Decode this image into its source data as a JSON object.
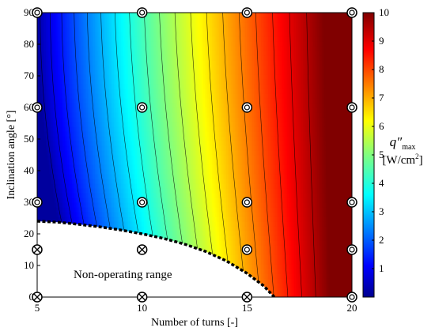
{
  "chart_data": {
    "type": "heatmap",
    "xlabel": "Number of turns [-]",
    "ylabel": "Inclination angle [°]",
    "xlim": [
      5,
      20
    ],
    "ylim": [
      0,
      90
    ],
    "x_ticks": [
      5,
      10,
      15,
      20
    ],
    "y_ticks": [
      0,
      10,
      20,
      30,
      40,
      50,
      60,
      70,
      80,
      90
    ],
    "colorbar": {
      "label_symbol": "q″",
      "label_sub": "max",
      "label_unit": "[W/cm",
      "label_unit_sup": "2",
      "label_unit_end": "]",
      "range": [
        0,
        10
      ],
      "ticks": [
        1,
        2,
        3,
        4,
        5,
        6,
        7,
        8,
        9,
        10
      ],
      "colormap": "jet"
    },
    "annotation": "Non-operating range",
    "operating_points": [
      {
        "x": 5,
        "y": 90
      },
      {
        "x": 10,
        "y": 90
      },
      {
        "x": 15,
        "y": 90
      },
      {
        "x": 20,
        "y": 90
      },
      {
        "x": 5,
        "y": 60
      },
      {
        "x": 10,
        "y": 60
      },
      {
        "x": 15,
        "y": 60
      },
      {
        "x": 20,
        "y": 60
      },
      {
        "x": 5,
        "y": 30
      },
      {
        "x": 10,
        "y": 30
      },
      {
        "x": 15,
        "y": 30
      },
      {
        "x": 20,
        "y": 30
      },
      {
        "x": 15,
        "y": 15
      },
      {
        "x": 20,
        "y": 15
      },
      {
        "x": 20,
        "y": 0
      }
    ],
    "non_operating_points": [
      {
        "x": 5,
        "y": 15
      },
      {
        "x": 10,
        "y": 15
      },
      {
        "x": 5,
        "y": 0
      },
      {
        "x": 10,
        "y": 0
      },
      {
        "x": 15,
        "y": 0
      }
    ],
    "boundary": [
      {
        "x": 5.0,
        "y": 24
      },
      {
        "x": 6.0,
        "y": 23.7
      },
      {
        "x": 7.0,
        "y": 23.0
      },
      {
        "x": 8.0,
        "y": 22.2
      },
      {
        "x": 9.0,
        "y": 21.2
      },
      {
        "x": 10.0,
        "y": 20.0
      },
      {
        "x": 11.0,
        "y": 18.6
      },
      {
        "x": 12.0,
        "y": 16.8
      },
      {
        "x": 13.0,
        "y": 14.5
      },
      {
        "x": 14.0,
        "y": 11.5
      },
      {
        "x": 15.0,
        "y": 7.5
      },
      {
        "x": 15.8,
        "y": 3.5
      },
      {
        "x": 16.3,
        "y": 0
      }
    ]
  }
}
